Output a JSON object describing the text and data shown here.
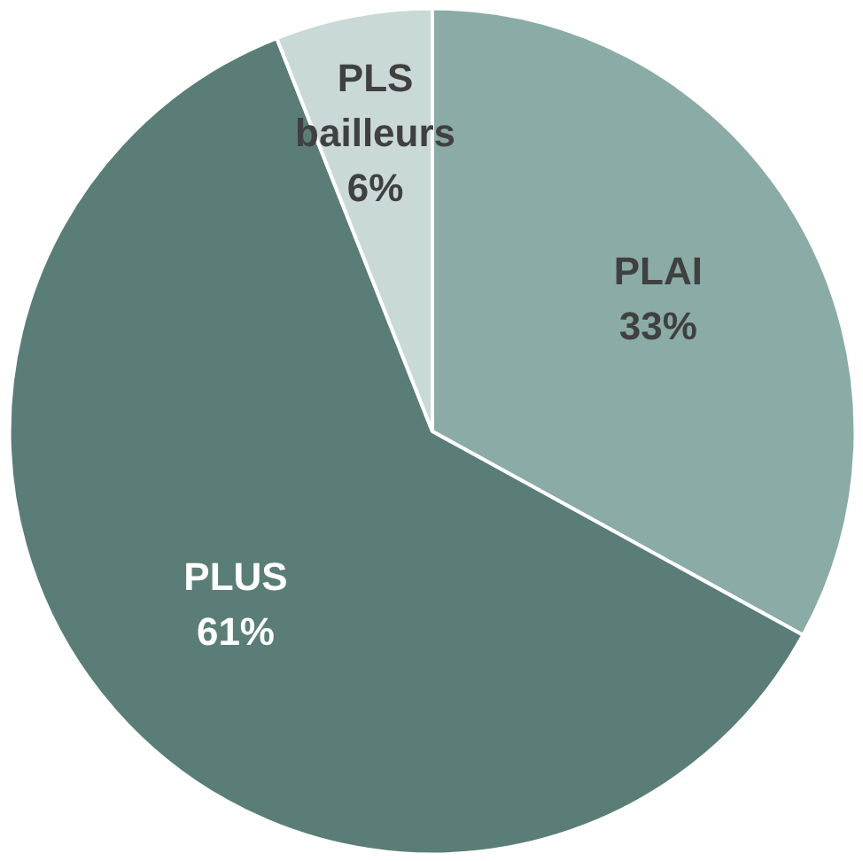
{
  "chart_data": {
    "type": "pie",
    "categories": [
      "PLAI",
      "PLUS",
      "PLS bailleurs"
    ],
    "values": [
      33,
      61,
      6
    ],
    "colors": [
      "#8aaba6",
      "#5a7d78",
      "#c9d9d7"
    ],
    "value_labels": [
      "33%",
      "61%",
      "6%"
    ]
  }
}
